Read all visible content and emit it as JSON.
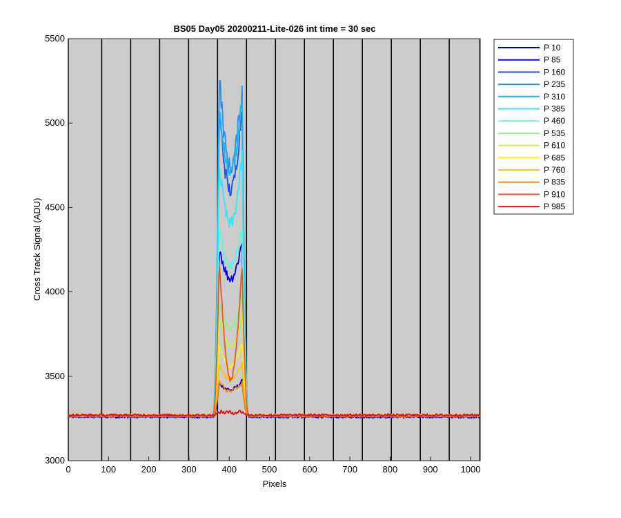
{
  "chart_data": {
    "type": "line",
    "title": "BS05 Day05 20200211-Lite-026 int time = 30 sec",
    "xlabel": "Pixels",
    "ylabel": "Cross Track Signal (ADU)",
    "xlim": [
      0,
      1024
    ],
    "ylim": [
      3000,
      5500
    ],
    "xticks": [
      0,
      100,
      200,
      300,
      400,
      500,
      600,
      700,
      800,
      900,
      1000
    ],
    "yticks": [
      3000,
      3500,
      4000,
      4500,
      5000,
      5500
    ],
    "background": "#cccccc",
    "grid": false,
    "legend_position": "outside-top-right",
    "vertical_lines_x": [
      0,
      83,
      155,
      227,
      299,
      371,
      443,
      515,
      587,
      659,
      731,
      803,
      875,
      947,
      1023
    ],
    "series": [
      {
        "name": "P 10",
        "color": "#0000aa",
        "baseline": 3260,
        "peak1": 3460,
        "dip": 3420,
        "peak2": 3470
      },
      {
        "name": "P 85",
        "color": "#0000ff",
        "baseline": 3262,
        "peak1": 4270,
        "dip": 4080,
        "peak2": 4300
      },
      {
        "name": "P 160",
        "color": "#1a53e6",
        "baseline": 3263,
        "peak1": 5080,
        "dip": 4600,
        "peak2": 5110
      },
      {
        "name": "P 235",
        "color": "#2a8ff0",
        "baseline": 3265,
        "peak1": 5290,
        "dip": 4740,
        "peak2": 5220
      },
      {
        "name": "P 310",
        "color": "#1ab6f2",
        "baseline": 3266,
        "peak1": 5120,
        "dip": 4700,
        "peak2": 5180
      },
      {
        "name": "P 385",
        "color": "#33e8f2",
        "baseline": 3267,
        "peak1": 4750,
        "dip": 4400,
        "peak2": 4800
      },
      {
        "name": "P 460",
        "color": "#66f2d9",
        "baseline": 3268,
        "peak1": 4380,
        "dip": 4150,
        "peak2": 4400
      },
      {
        "name": "P 535",
        "color": "#8cf08c",
        "baseline": 3268,
        "peak1": 3950,
        "dip": 3780,
        "peak2": 3980
      },
      {
        "name": "P 610",
        "color": "#c8f040",
        "baseline": 3269,
        "peak1": 3850,
        "dip": 3680,
        "peak2": 3860
      },
      {
        "name": "P 685",
        "color": "#ffee1a",
        "baseline": 3268,
        "peak1": 3680,
        "dip": 3560,
        "peak2": 3700
      },
      {
        "name": "P 760",
        "color": "#f7c31a",
        "baseline": 3267,
        "peak1": 3570,
        "dip": 3480,
        "peak2": 3580
      },
      {
        "name": "P 835",
        "color": "#f58a1a",
        "baseline": 3266,
        "peak1": 3470,
        "dip": 3410,
        "peak2": 3460
      },
      {
        "name": "P 910",
        "color": "#f2551a",
        "baseline": 3265,
        "peak1": 4200,
        "dip": 3480,
        "peak2": 4150
      },
      {
        "name": "P 985",
        "color": "#e01010",
        "baseline": 3270,
        "peak1": 3290,
        "dip": 3285,
        "peak2": 3292
      }
    ]
  }
}
